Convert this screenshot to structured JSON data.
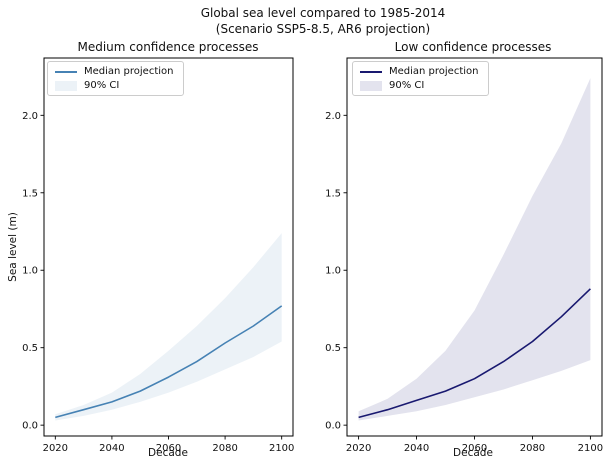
{
  "figure": {
    "title_line1": "Global sea level compared to 1985-2014",
    "title_line2": "(Scenario SSP5-8.5, AR6 projection)"
  },
  "chart_data": [
    {
      "type": "line",
      "title": "Medium confidence processes",
      "xlabel": "Decade",
      "ylabel": "Sea level (m)",
      "x": [
        2020,
        2030,
        2040,
        2050,
        2060,
        2070,
        2080,
        2090,
        2100
      ],
      "series": [
        {
          "name": "Median projection",
          "style": "line",
          "color": "#4682b4",
          "values": [
            0.05,
            0.1,
            0.15,
            0.22,
            0.31,
            0.41,
            0.53,
            0.64,
            0.77
          ]
        },
        {
          "name": "90% CI",
          "style": "band",
          "color": "#ecf2f7",
          "lower": [
            0.03,
            0.06,
            0.1,
            0.15,
            0.21,
            0.28,
            0.36,
            0.44,
            0.54
          ],
          "upper": [
            0.07,
            0.13,
            0.21,
            0.33,
            0.48,
            0.64,
            0.82,
            1.02,
            1.24
          ]
        }
      ],
      "xticks": [
        "2020",
        "2040",
        "2060",
        "2080",
        "2100"
      ],
      "yticks": [
        "0.0",
        "0.5",
        "1.0",
        "1.5",
        "2.0"
      ],
      "xlim": [
        2016,
        2104
      ],
      "ylim": [
        -0.07,
        2.37
      ],
      "grid": false,
      "legend_position": "upper left"
    },
    {
      "type": "line",
      "title": "Low confidence processes",
      "xlabel": "Decade",
      "ylabel": "",
      "x": [
        2020,
        2030,
        2040,
        2050,
        2060,
        2070,
        2080,
        2090,
        2100
      ],
      "series": [
        {
          "name": "Median projection",
          "style": "line",
          "color": "#191970",
          "values": [
            0.05,
            0.1,
            0.16,
            0.22,
            0.3,
            0.41,
            0.54,
            0.7,
            0.88
          ]
        },
        {
          "name": "90% CI",
          "style": "band",
          "color": "#e3e3ee",
          "lower": [
            0.03,
            0.06,
            0.09,
            0.13,
            0.18,
            0.23,
            0.29,
            0.35,
            0.42
          ],
          "upper": [
            0.09,
            0.17,
            0.3,
            0.48,
            0.74,
            1.1,
            1.48,
            1.82,
            2.24
          ]
        }
      ],
      "xticks": [
        "2020",
        "2040",
        "2060",
        "2080",
        "2100"
      ],
      "yticks": [
        "0.0",
        "0.5",
        "1.0",
        "1.5",
        "2.0"
      ],
      "xlim": [
        2016,
        2104
      ],
      "ylim": [
        -0.07,
        2.37
      ],
      "grid": false,
      "legend_position": "upper left"
    }
  ]
}
